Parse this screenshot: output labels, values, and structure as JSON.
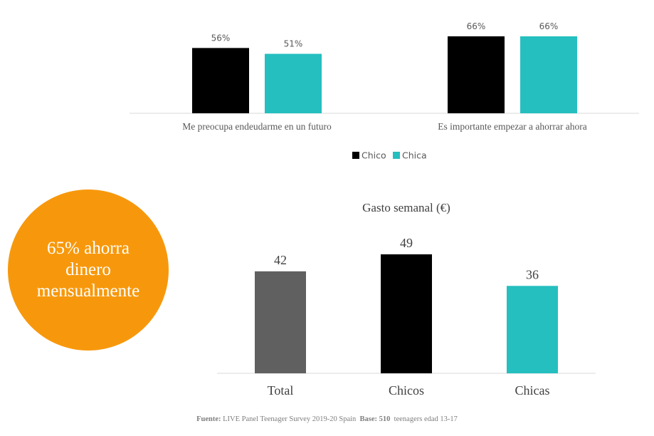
{
  "colors": {
    "chico": "#000000",
    "chica": "#25bfbf",
    "total": "#606060",
    "badge": "#f7980c",
    "axis": "#d9d9d9",
    "text": "#595959"
  },
  "chart_data": [
    {
      "type": "bar",
      "categories": [
        "Me preocupa endeudarme en un futuro",
        "Es importante empezar a ahorrar ahora"
      ],
      "series": [
        {
          "name": "Chico",
          "values": [
            56,
            66
          ],
          "labels": [
            "56%",
            "66%"
          ]
        },
        {
          "name": "Chica",
          "values": [
            51,
            66
          ],
          "labels": [
            "51%",
            "66%"
          ]
        }
      ],
      "unit": "%",
      "legend_position": "bottom",
      "grid": false
    },
    {
      "type": "bar",
      "title": "Gasto semanal (€)",
      "categories": [
        "Total",
        "Chicos",
        "Chicas"
      ],
      "values": [
        42,
        49,
        36
      ],
      "grid": false
    }
  ],
  "badge": {
    "text": "65% ahorra dinero mensualmente"
  },
  "footnote": {
    "fuente_label": "Fuente:",
    "fuente_text": "LIVE Panel Teenager Survey 2019-20 Spain",
    "base_label": "Base:",
    "base_value": "510",
    "base_text": "teenagers edad 13-17"
  }
}
